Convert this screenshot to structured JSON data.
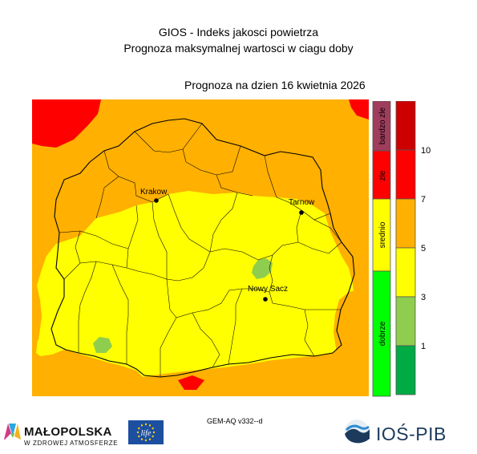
{
  "header": {
    "title_line1": "GIOS - Indeks jakosci powietrza",
    "title_line2": "Prognoza maksymalnej wartosci w ciagu doby",
    "forecast_date": "Prognoza na dzien  16 kwietnia 2026"
  },
  "map": {
    "cities": [
      {
        "name": "Krakow"
      },
      {
        "name": "Tarnow"
      },
      {
        "name": "Nowy Sacz"
      }
    ],
    "colors": {
      "dobrze": "#8fcd4f",
      "srednio": "#ffff00",
      "umiarkowane": "#ffb000",
      "zle": "#ff0000"
    }
  },
  "legend": {
    "categories": [
      {
        "label": "bardzo zle",
        "color": "#a03c5c"
      },
      {
        "label": "zle",
        "color": "#ff0000"
      },
      {
        "label": "srednio",
        "color": "#ffff00"
      },
      {
        "label": "dobrze",
        "color": "#00ff00"
      }
    ],
    "scale_colors": [
      "#cc0000",
      "#ff0000",
      "#ffb000",
      "#ffff00",
      "#8fcd4f",
      "#00aa44"
    ],
    "ticks": [
      "10",
      "7",
      "5",
      "3",
      "1"
    ]
  },
  "footer": {
    "model": "GEM-AQ v332--d",
    "malopolska_name": "MAŁOPOLSKA",
    "malopolska_tagline": "W ZDROWEJ ATMOSFERZE",
    "life_text": "life",
    "ios_name": "IOŚ-PIB"
  }
}
